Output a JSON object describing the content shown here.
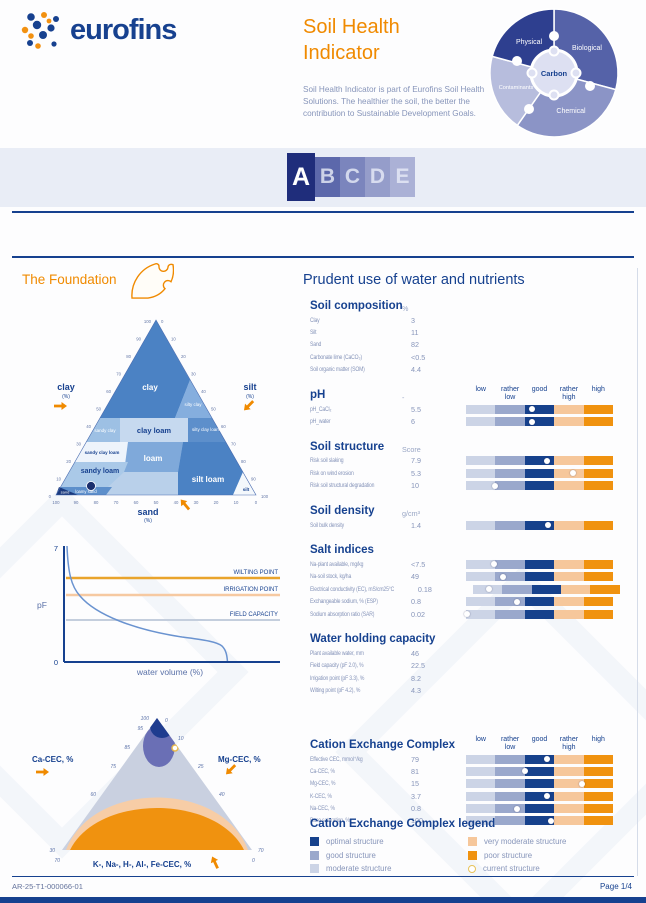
{
  "colors": {
    "navy": "#16418f",
    "orange": "#f08a00",
    "scale": [
      "#ccd4e6",
      "#9aa8cc",
      "#16418c",
      "#f6c79b",
      "#f0920f"
    ]
  },
  "header": {
    "logo_text": "eurofins",
    "title_line1": "Soil Health",
    "title_line2": "Indicator",
    "description": "Soil Health Indicator is part of Eurofins Soil Health Solutions. The healthier the soil, the better the contribution to Sustainable Development Goals.",
    "wheel": {
      "physical": "Physical",
      "biological": "Biological",
      "chemical": "Chemical",
      "contaminants": "Contaminants",
      "center": "Carbon"
    }
  },
  "grades": {
    "letters": [
      "A",
      "B",
      "C",
      "D",
      "E"
    ],
    "active": "A"
  },
  "foundation": {
    "title": "The Foundation"
  },
  "texture_triangle": {
    "regions": {
      "clay": "clay",
      "silty_clay": "silty clay",
      "sandy_clay": "sandy clay",
      "clay_loam": "clay loam",
      "silty_clay_loam": "silty clay loam",
      "sandy_clay_loam": "sandy clay loam",
      "loam": "loam",
      "silt_loam": "silt loam",
      "sandy_loam": "sandy loam",
      "loamy_sand": "loamy sand",
      "sand": "sand",
      "silt": "silt"
    },
    "axes": {
      "left": "clay",
      "right": "silt",
      "bottom": "sand",
      "unit": "(%)"
    },
    "ticks": [
      "0",
      "10",
      "20",
      "30",
      "40",
      "50",
      "60",
      "70",
      "80",
      "90",
      "100"
    ]
  },
  "pf_chart": {
    "type": "line",
    "ylabel": "pF",
    "xlabel": "water volume (%)",
    "ymax": "7",
    "ymin": "0",
    "reference_lines": [
      {
        "label": "WILTING POINT",
        "color": "#e9a42c"
      },
      {
        "label": "IRRIGATION POINT",
        "color": "#f6c9a1"
      },
      {
        "label": "FIELD CAPACITY",
        "color": "#c4cedd"
      }
    ]
  },
  "cec_triangle": {
    "left_axis": "Ca-CEC, %",
    "right_axis": "Mg-CEC, %",
    "bottom_axis": "K-, Na-, H-, Al-, Fe-CEC, %",
    "left_ticks": [
      "100",
      "95",
      "85",
      "75",
      "60",
      "30"
    ],
    "right_ticks": [
      "0",
      "10",
      "25",
      "40",
      "70"
    ],
    "corner_left": "70",
    "corner_right": "0"
  },
  "report": {
    "title": "Prudent use of water and nutrients",
    "scale_headers": [
      "low",
      "rather low",
      "good",
      "rather high",
      "high"
    ],
    "sections": [
      {
        "title": "Soil composition",
        "unit": "%",
        "scale_header": false,
        "rows": [
          {
            "label": "Clay",
            "value": "3"
          },
          {
            "label": "Silt",
            "value": "11"
          },
          {
            "label": "Sand",
            "value": "82"
          },
          {
            "label": "Carbonate lime (CaCO₃)",
            "value": "<0.5"
          },
          {
            "label": "Soil organic matter (SOM)",
            "value": "4.4"
          }
        ]
      },
      {
        "title": "pH",
        "unit": "-",
        "scale_header": true,
        "rows": [
          {
            "label": "pH_CaCl₂",
            "value": "5.5",
            "dot": 45
          },
          {
            "label": "pH_water",
            "value": "6",
            "dot": 45
          }
        ]
      },
      {
        "title": "Soil structure",
        "unit": "Score",
        "scale_header": false,
        "rows": [
          {
            "label": "Risk soil slaking",
            "value": "7.9",
            "dot": 55
          },
          {
            "label": "Risk on wind erosion",
            "value": "5.3",
            "dot": 73
          },
          {
            "label": "Risk soil structural degradation",
            "value": "10",
            "dot": 20
          }
        ]
      },
      {
        "title": "Soil density",
        "unit": "g/cm³",
        "scale_header": false,
        "rows": [
          {
            "label": "Soil bulk density",
            "value": "1.4",
            "dot": 56
          }
        ]
      },
      {
        "title": "Salt indices",
        "unit": "",
        "scale_header": false,
        "rows": [
          {
            "label": "Na-plant available, mg/kg",
            "value": "<7.5",
            "dot": 19
          },
          {
            "label": "Na-soil stock, kg/ha",
            "value": "49",
            "dot": 25
          },
          {
            "label": "Electrical conductivity (EC), mS/cm25°C",
            "value": "0.18",
            "dot": 11
          },
          {
            "label": "Exchangeable sodium, % (ESP)",
            "value": "0.8",
            "dot": 35
          },
          {
            "label": "Sodium absorption ratio (SAR)",
            "value": "0.02",
            "dot": 1
          }
        ]
      },
      {
        "title": "Water holding capacity",
        "unit": "",
        "scale_header": false,
        "rows": [
          {
            "label": "Plant available water, mm",
            "value": "46"
          },
          {
            "label": "Field capacity (pF 2.0), %",
            "value": "22.5"
          },
          {
            "label": "Irrigation point (pF 3.3), %",
            "value": "8.2"
          },
          {
            "label": "Wilting point (pF 4.2), %",
            "value": "4.3"
          }
        ]
      },
      {
        "title": "Cation Exchange Complex",
        "unit": "",
        "scale_header": true,
        "rows": [
          {
            "label": "Effective CEC, mmol⁺/kg",
            "value": "79",
            "dot": 55
          },
          {
            "label": "Ca-CEC, %",
            "value": "81",
            "dot": 40
          },
          {
            "label": "Mg-CEC, %",
            "value": "15",
            "dot": 79
          },
          {
            "label": "K-CEC, %",
            "value": "3.7",
            "dot": 55
          },
          {
            "label": "Na-CEC, %",
            "value": "0.8",
            "dot": 35
          },
          {
            "label": "Base saturation, %",
            "value": "100",
            "dot": 58
          }
        ]
      }
    ]
  },
  "legend": {
    "title": "Cation Exchange Complex legend",
    "columns": [
      [
        {
          "label": "optimal structure",
          "swatch": "#16418c"
        },
        {
          "label": "good structure",
          "swatch": "#9aa8cc"
        },
        {
          "label": "moderate structure",
          "swatch": "#ccd4e6"
        }
      ],
      [
        {
          "label": "very moderate structure",
          "swatch": "#f6c79b"
        },
        {
          "label": "poor structure",
          "swatch": "#f0920f"
        },
        {
          "label": "current structure",
          "swatch": "dot"
        }
      ]
    ]
  },
  "footer": {
    "reference": "AR-25-T1-000066-01",
    "page": "Page 1/4"
  }
}
